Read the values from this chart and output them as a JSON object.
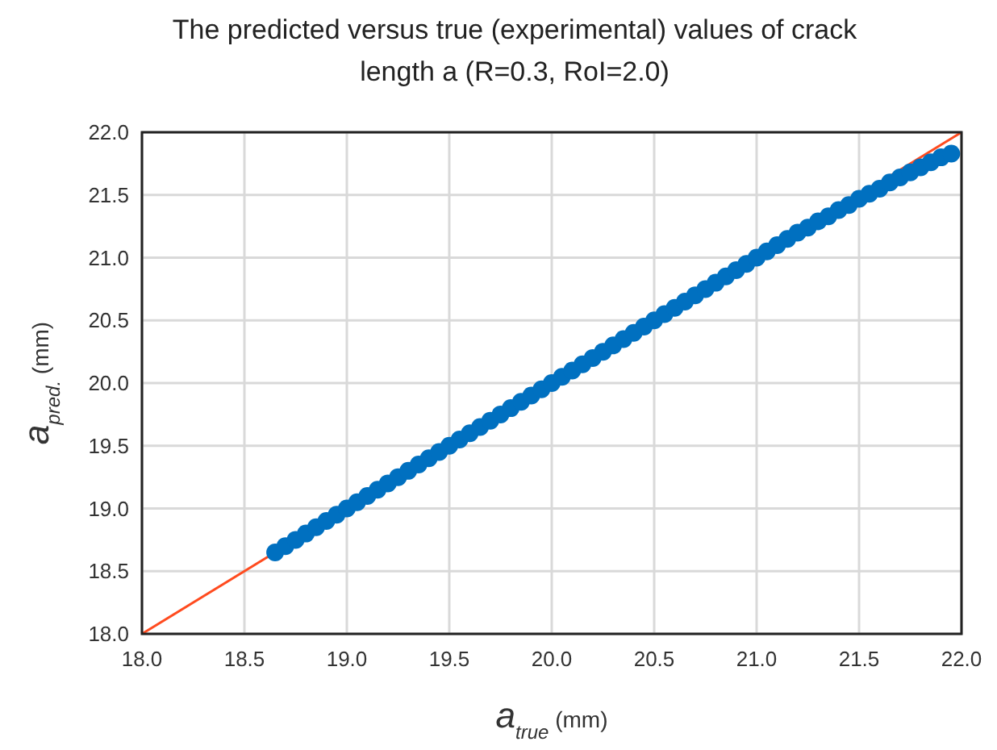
{
  "chart_data": {
    "type": "scatter",
    "title": "The predicted versus true (experimental) values of crack length a (R=0.3, RoI=2.0)",
    "xlabel": "a$_{true}$ (mm)",
    "ylabel": "a$_{pred.}$ (mm)",
    "xlim": [
      18,
      22
    ],
    "ylim": [
      18,
      22
    ],
    "xticks": [
      {
        "value": 18,
        "label": "18.0"
      },
      {
        "value": 18.5,
        "label": "18.5"
      },
      {
        "value": 19,
        "label": "19.0"
      },
      {
        "value": 19.5,
        "label": "19.5"
      },
      {
        "value": 20,
        "label": "20.0"
      },
      {
        "value": 20.5,
        "label": "20.5"
      },
      {
        "value": 21,
        "label": "21.0"
      },
      {
        "value": 21.5,
        "label": "21.5"
      },
      {
        "value": 22,
        "label": "22.0"
      }
    ],
    "yticks": [
      {
        "value": 18,
        "label": "18.0"
      },
      {
        "value": 18.5,
        "label": "18.5"
      },
      {
        "value": 19,
        "label": "19.0"
      },
      {
        "value": 19.5,
        "label": "19.5"
      },
      {
        "value": 20,
        "label": "20.0"
      },
      {
        "value": 20.5,
        "label": "20.5"
      },
      {
        "value": 21,
        "label": "21.0"
      },
      {
        "value": 21.5,
        "label": "21.5"
      },
      {
        "value": 22,
        "label": "22.0"
      }
    ],
    "grid": true,
    "marker": "circle",
    "series": [
      {
        "type": "line",
        "color": "#ff4b1f",
        "x": [
          18,
          22
        ],
        "values": [
          18,
          22
        ],
        "marker": "none",
        "line_style": "solid"
      },
      {
        "color": "#0070c0",
        "x": [
          18.65,
          18.7,
          18.75,
          18.8,
          18.85,
          18.9,
          18.95,
          19.0,
          19.05,
          19.1,
          19.15,
          19.2,
          19.25,
          19.3,
          19.35,
          19.4,
          19.45,
          19.5,
          19.55,
          19.6,
          19.65,
          19.7,
          19.75,
          19.8,
          19.85,
          19.9,
          19.95,
          20.0,
          20.05,
          20.1,
          20.15,
          20.2,
          20.25,
          20.3,
          20.35,
          20.4,
          20.45,
          20.5,
          20.55,
          20.6,
          20.65,
          20.7,
          20.75,
          20.8,
          20.85,
          20.9,
          20.95,
          21.0,
          21.05,
          21.1,
          21.15,
          21.2,
          21.25,
          21.3,
          21.35,
          21.4,
          21.45,
          21.5,
          21.55,
          21.6,
          21.65,
          21.7,
          21.75,
          21.8,
          21.85,
          21.9,
          21.95
        ],
        "values": [
          18.65,
          18.7,
          18.75,
          18.8,
          18.85,
          18.9,
          18.95,
          19.0,
          19.05,
          19.1,
          19.15,
          19.2,
          19.25,
          19.3,
          19.35,
          19.4,
          19.45,
          19.5,
          19.55,
          19.6,
          19.65,
          19.7,
          19.75,
          19.8,
          19.85,
          19.9,
          19.95,
          20.0,
          20.05,
          20.1,
          20.15,
          20.2,
          20.25,
          20.3,
          20.35,
          20.4,
          20.45,
          20.5,
          20.55,
          20.6,
          20.65,
          20.7,
          20.75,
          20.8,
          20.85,
          20.9,
          20.95,
          21.0,
          21.05,
          21.1,
          21.15,
          21.2,
          21.24,
          21.29,
          21.33,
          21.38,
          21.42,
          21.47,
          21.51,
          21.55,
          21.6,
          21.64,
          21.68,
          21.72,
          21.76,
          21.8,
          21.83
        ]
      }
    ]
  }
}
